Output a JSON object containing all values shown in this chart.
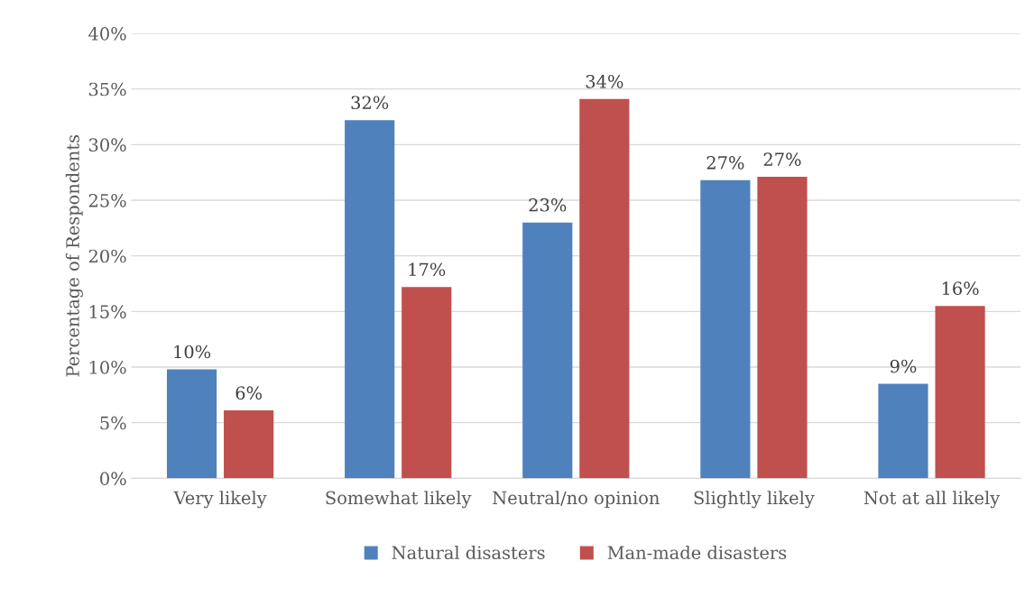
{
  "chart_data": {
    "type": "bar",
    "ylabel": "Percentage of Respondents",
    "categories": [
      "Very likely",
      "Somewhat likely",
      "Neutral/no opinion",
      "Slightly likely",
      "Not at all likely"
    ],
    "series": [
      {
        "name": "Natural disasters",
        "color": "#4f81bd",
        "values": [
          9.8,
          32.2,
          23.0,
          26.8,
          8.5
        ],
        "value_labels": [
          "10%",
          "32%",
          "23%",
          "27%",
          "9%"
        ]
      },
      {
        "name": "Man-made disasters",
        "color": "#c0504d",
        "values": [
          6.1,
          17.2,
          34.1,
          27.1,
          15.5
        ],
        "value_labels": [
          "6%",
          "17%",
          "34%",
          "27%",
          "16%"
        ]
      }
    ],
    "ylim": [
      0,
      40
    ],
    "yticks": [
      {
        "value": 0,
        "label": "0%"
      },
      {
        "value": 5,
        "label": "5%"
      },
      {
        "value": 10,
        "label": "10%"
      },
      {
        "value": 15,
        "label": "15%"
      },
      {
        "value": 20,
        "label": "20%"
      },
      {
        "value": 25,
        "label": "25%"
      },
      {
        "value": 30,
        "label": "30%"
      },
      {
        "value": 35,
        "label": "35%"
      },
      {
        "value": 40,
        "label": "40%"
      }
    ],
    "grid": "y",
    "legend": "bottom"
  }
}
